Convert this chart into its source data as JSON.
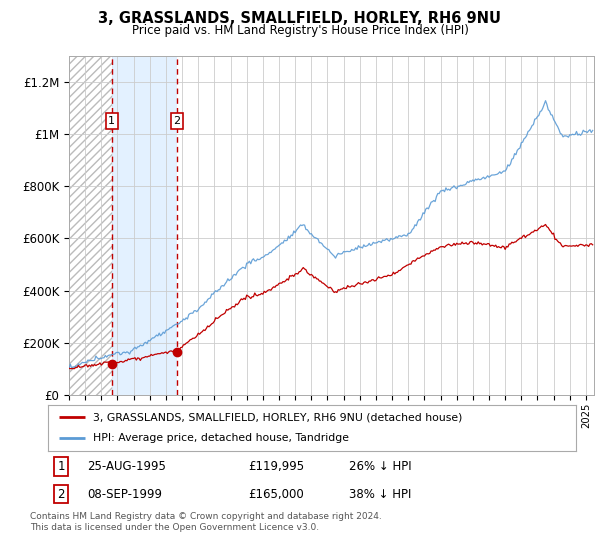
{
  "title": "3, GRASSLANDS, SMALLFIELD, HORLEY, RH6 9NU",
  "subtitle": "Price paid vs. HM Land Registry's House Price Index (HPI)",
  "legend_line1": "3, GRASSLANDS, SMALLFIELD, HORLEY, RH6 9NU (detached house)",
  "legend_line2": "HPI: Average price, detached house, Tandridge",
  "footer": "Contains HM Land Registry data © Crown copyright and database right 2024.\nThis data is licensed under the Open Government Licence v3.0.",
  "annotation1": {
    "label": "1",
    "date": "25-AUG-1995",
    "price": "£119,995",
    "note": "26% ↓ HPI"
  },
  "annotation2": {
    "label": "2",
    "date": "08-SEP-1999",
    "price": "£165,000",
    "note": "38% ↓ HPI"
  },
  "sale1_x": 1995.65,
  "sale1_y": 119995,
  "sale2_x": 1999.69,
  "sale2_y": 165000,
  "hpi_color": "#5b9bd5",
  "price_color": "#c00000",
  "ylim": [
    0,
    1300000
  ],
  "xlim_start": 1993.0,
  "xlim_end": 2025.5
}
